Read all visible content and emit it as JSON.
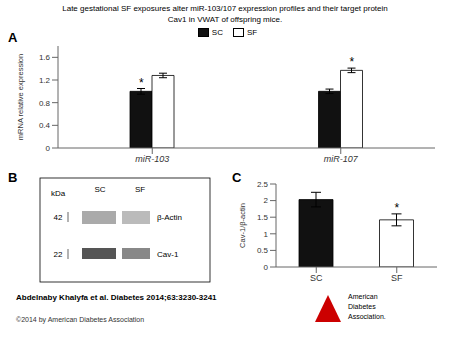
{
  "chart_data": [
    {
      "type": "bar",
      "title": "Late gestational SF exposures alter miR-103/107 expression profiles and their target protein",
      "subtitle": "Cav1 in VWAT of offspring mice.",
      "categories": [
        "miR-103",
        "miR-107"
      ],
      "series": [
        {
          "name": "SC",
          "color": "#111111",
          "values": [
            1.0,
            1.0
          ],
          "errors": [
            0.05,
            0.04
          ]
        },
        {
          "name": "SF",
          "color": "#ffffff",
          "values": [
            1.28,
            1.37
          ],
          "errors": [
            0.04,
            0.04
          ]
        }
      ],
      "ylabel": "mRNA relative expression",
      "ylim": [
        0,
        1.8
      ],
      "yticks": [
        0,
        0.4,
        0.8,
        1.2,
        1.6
      ],
      "annotations": [
        {
          "kind": "panel_label",
          "text": "A"
        },
        {
          "kind": "mark",
          "text": "*",
          "category": "miR-103",
          "series": "SC"
        },
        {
          "kind": "mark",
          "text": "*",
          "category": "miR-107",
          "series": "SF"
        },
        {
          "kind": "citation",
          "text": "Abdelnaby Khalyfa et al. Diabetes 2014;63:3230-3241"
        },
        {
          "kind": "copyright",
          "text": "©2014 by American Diabetes Association"
        },
        {
          "kind": "logo",
          "text": "American\nDiabetes\nAssociation.",
          "color": "#cc0000"
        }
      ]
    },
    {
      "type": "blot",
      "categories": [
        "SC",
        "SF"
      ],
      "annotations": [
        {
          "kind": "panel_label",
          "text": "B"
        },
        {
          "kind": "header",
          "text": "kDa"
        },
        {
          "kind": "band",
          "text": "42",
          "band": "β-Actin"
        },
        {
          "kind": "band",
          "text": "22",
          "band": "Cav-1"
        }
      ]
    },
    {
      "type": "bar",
      "categories": [
        "SC",
        "SF"
      ],
      "values": [
        2.03,
        1.42
      ],
      "errors": [
        0.22,
        0.18
      ],
      "colors": [
        "#111111",
        "#ffffff"
      ],
      "ylabel": "Cav-1/β-actin",
      "ylim": [
        0,
        2.5
      ],
      "yticks": [
        0,
        0.5,
        1,
        1.5,
        2,
        2.5
      ],
      "annotations": [
        {
          "kind": "panel_label",
          "text": "C"
        },
        {
          "kind": "mark",
          "text": "*",
          "category": "SF"
        }
      ]
    }
  ]
}
